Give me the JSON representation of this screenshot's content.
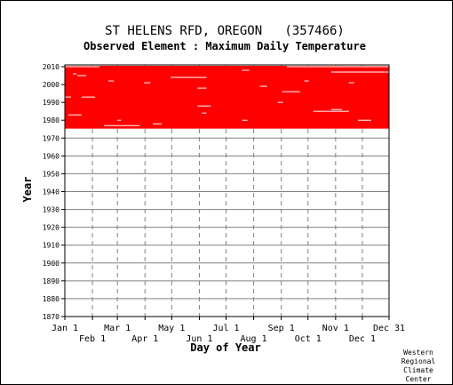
{
  "chart_data": {
    "type": "heatmap",
    "title": "ST HELENS RFD, OREGON   (357466)",
    "subtitle": "Observed Element : Maximum Daily Temperature",
    "xlabel": "Day of Year",
    "ylabel": "Year",
    "x_range": [
      1,
      365
    ],
    "ylim": [
      1870,
      2011
    ],
    "y_ticks": [
      1870,
      1880,
      1890,
      1900,
      1910,
      1920,
      1930,
      1940,
      1950,
      1960,
      1970,
      1980,
      1990,
      2000,
      2010
    ],
    "x_ticks": [
      {
        "label": "Jan 1",
        "day": 1,
        "row": 1
      },
      {
        "label": "Feb 1",
        "day": 32,
        "row": 2
      },
      {
        "label": "Mar 1",
        "day": 60,
        "row": 1
      },
      {
        "label": "Apr 1",
        "day": 91,
        "row": 2
      },
      {
        "label": "May 1",
        "day": 121,
        "row": 1
      },
      {
        "label": "Jun 1",
        "day": 152,
        "row": 2
      },
      {
        "label": "Jul 1",
        "day": 182,
        "row": 1
      },
      {
        "label": "Aug 1",
        "day": 213,
        "row": 2
      },
      {
        "label": "Sep 1",
        "day": 244,
        "row": 1
      },
      {
        "label": "Oct 1",
        "day": 274,
        "row": 2
      },
      {
        "label": "Nov 1",
        "day": 305,
        "row": 1
      },
      {
        "label": "Dec 1",
        "day": 335,
        "row": 2
      },
      {
        "label": "Dec 31",
        "day": 365,
        "row": 1
      }
    ],
    "grid": true,
    "record_years": [
      1976,
      2010
    ],
    "data_color": "#ff0000",
    "missing_segments": [
      {
        "year": 1977,
        "start_day": 45,
        "end_day": 85
      },
      {
        "year": 1978,
        "start_day": 100,
        "end_day": 110
      },
      {
        "year": 1980,
        "start_day": 60,
        "end_day": 64
      },
      {
        "year": 1980,
        "start_day": 200,
        "end_day": 206
      },
      {
        "year": 1980,
        "start_day": 330,
        "end_day": 345
      },
      {
        "year": 1983,
        "start_day": 5,
        "end_day": 20
      },
      {
        "year": 1984,
        "start_day": 155,
        "end_day": 160
      },
      {
        "year": 1985,
        "start_day": 280,
        "end_day": 320
      },
      {
        "year": 1986,
        "start_day": 300,
        "end_day": 312
      },
      {
        "year": 1988,
        "start_day": 150,
        "end_day": 165
      },
      {
        "year": 1990,
        "start_day": 240,
        "end_day": 246
      },
      {
        "year": 1993,
        "start_day": 1,
        "end_day": 8
      },
      {
        "year": 1993,
        "start_day": 20,
        "end_day": 35
      },
      {
        "year": 1996,
        "start_day": 245,
        "end_day": 265
      },
      {
        "year": 1998,
        "start_day": 150,
        "end_day": 160
      },
      {
        "year": 1999,
        "start_day": 220,
        "end_day": 228
      },
      {
        "year": 2001,
        "start_day": 90,
        "end_day": 97
      },
      {
        "year": 2001,
        "start_day": 320,
        "end_day": 326
      },
      {
        "year": 2002,
        "start_day": 50,
        "end_day": 56
      },
      {
        "year": 2002,
        "start_day": 270,
        "end_day": 275
      },
      {
        "year": 2004,
        "start_day": 120,
        "end_day": 160
      },
      {
        "year": 2005,
        "start_day": 15,
        "end_day": 25
      },
      {
        "year": 2006,
        "start_day": 10,
        "end_day": 14
      },
      {
        "year": 2007,
        "start_day": 300,
        "end_day": 365
      },
      {
        "year": 2008,
        "start_day": 200,
        "end_day": 208
      },
      {
        "year": 2010,
        "start_day": 1,
        "end_day": 40
      },
      {
        "year": 2010,
        "start_day": 250,
        "end_day": 365
      }
    ]
  },
  "credit": [
    "Western",
    "Regional",
    "Climate",
    "Center"
  ],
  "colors": {
    "grid_h": "#808080",
    "grid_v": "#808080",
    "axis": "#000000"
  }
}
